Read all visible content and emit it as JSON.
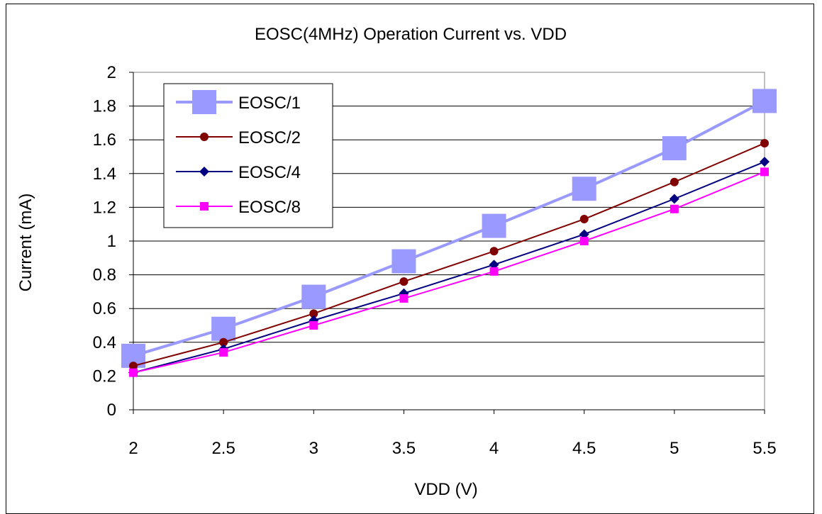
{
  "chart_data": {
    "type": "line",
    "title": "EOSC(4MHz) Operation Current vs. VDD",
    "xlabel": "VDD (V)",
    "ylabel": "Current (mA)",
    "x": [
      2,
      2.5,
      3,
      3.5,
      4,
      4.5,
      5,
      5.5
    ],
    "x_tick_labels": [
      "2",
      "2.5",
      "3",
      "3.5",
      "4",
      "4.5",
      "5",
      "5.5"
    ],
    "ylim": [
      0,
      2
    ],
    "y_ticks": [
      0,
      0.2,
      0.4,
      0.6,
      0.8,
      1,
      1.2,
      1.4,
      1.6,
      1.8,
      2
    ],
    "y_tick_labels": [
      "0",
      "0.2",
      "0.4",
      "0.6",
      "0.8",
      "1",
      "1.2",
      "1.4",
      "1.6",
      "1.8",
      "2"
    ],
    "grid": "horizontal",
    "legend_position": "top-left",
    "series": [
      {
        "name": "EOSC/1",
        "values": [
          0.32,
          0.48,
          0.67,
          0.88,
          1.09,
          1.31,
          1.55,
          1.83
        ],
        "color": "#9999ff",
        "marker": "square-large"
      },
      {
        "name": "EOSC/2",
        "values": [
          0.26,
          0.4,
          0.57,
          0.76,
          0.94,
          1.13,
          1.35,
          1.58
        ],
        "color": "#800000",
        "marker": "circle"
      },
      {
        "name": "EOSC/4",
        "values": [
          0.22,
          0.36,
          0.53,
          0.69,
          0.86,
          1.04,
          1.25,
          1.47
        ],
        "color": "#000080",
        "marker": "diamond"
      },
      {
        "name": "EOSC/8",
        "values": [
          0.22,
          0.34,
          0.5,
          0.66,
          0.82,
          1.0,
          1.19,
          1.41
        ],
        "color": "#ff00ff",
        "marker": "square"
      }
    ]
  }
}
